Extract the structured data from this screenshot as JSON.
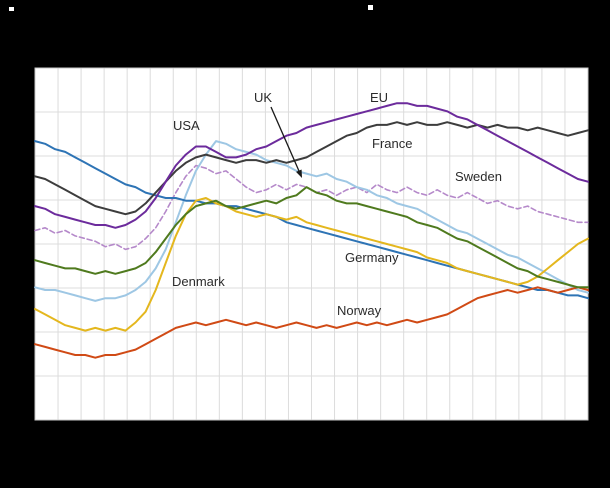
{
  "chart_data": {
    "type": "line",
    "title": "",
    "xlabel": "",
    "ylabel": "",
    "ylim": [
      0,
      13
    ],
    "x_points": 56,
    "grid": {
      "vertical_divisions": 24,
      "horizontal_divisions": 8,
      "grid_color": "#dcdcdc",
      "border_color": "#c9c9c9",
      "grid_on": true
    },
    "background": {
      "page": "#000000",
      "plot": "#ffffff"
    },
    "legend_position": "inline-labels",
    "annotation_arrow_color": "#1a1a1a",
    "series": [
      {
        "name": "USA",
        "color": "#9ec7e4",
        "style": "solid",
        "values": [
          4.9,
          4.8,
          4.8,
          4.7,
          4.6,
          4.5,
          4.4,
          4.5,
          4.5,
          4.6,
          4.8,
          5.1,
          5.6,
          6.3,
          7.3,
          8.3,
          9.2,
          9.8,
          10.3,
          10.2,
          10.0,
          9.9,
          9.8,
          9.6,
          9.5,
          9.4,
          9.2,
          9.1,
          9.0,
          9.1,
          8.9,
          8.8,
          8.6,
          8.5,
          8.3,
          8.2,
          8.0,
          7.9,
          7.8,
          7.6,
          7.4,
          7.2,
          7.0,
          6.9,
          6.7,
          6.5,
          6.3,
          6.1,
          6.0,
          5.8,
          5.6,
          5.4,
          5.2,
          5.0,
          4.8,
          4.7
        ]
      },
      {
        "name": "UK",
        "color": "#4f7a1e",
        "style": "solid",
        "values": [
          5.9,
          5.8,
          5.7,
          5.6,
          5.6,
          5.5,
          5.4,
          5.5,
          5.4,
          5.5,
          5.6,
          5.8,
          6.2,
          6.7,
          7.2,
          7.6,
          7.9,
          8.0,
          8.1,
          7.9,
          7.8,
          7.9,
          8.0,
          8.1,
          8.0,
          8.2,
          8.3,
          8.6,
          8.4,
          8.3,
          8.1,
          8.0,
          8.0,
          7.9,
          7.8,
          7.7,
          7.6,
          7.5,
          7.3,
          7.2,
          7.1,
          6.9,
          6.7,
          6.6,
          6.4,
          6.2,
          6.0,
          5.8,
          5.6,
          5.5,
          5.3,
          5.2,
          5.1,
          5.0,
          4.9,
          4.9
        ]
      },
      {
        "name": "EU",
        "color": "#6c2b9c",
        "style": "solid",
        "values": [
          7.9,
          7.8,
          7.6,
          7.5,
          7.4,
          7.3,
          7.2,
          7.2,
          7.1,
          7.2,
          7.4,
          7.7,
          8.2,
          8.8,
          9.4,
          9.8,
          10.1,
          10.1,
          9.9,
          9.7,
          9.7,
          9.8,
          10.0,
          10.1,
          10.3,
          10.5,
          10.6,
          10.8,
          10.9,
          11.0,
          11.1,
          11.2,
          11.3,
          11.4,
          11.5,
          11.6,
          11.7,
          11.7,
          11.6,
          11.6,
          11.5,
          11.4,
          11.2,
          11.1,
          10.9,
          10.7,
          10.5,
          10.3,
          10.1,
          9.9,
          9.7,
          9.5,
          9.3,
          9.1,
          8.9,
          8.8
        ]
      },
      {
        "name": "France",
        "color": "#3d3d3d",
        "style": "solid",
        "values": [
          9.0,
          8.9,
          8.7,
          8.5,
          8.3,
          8.1,
          7.9,
          7.8,
          7.7,
          7.6,
          7.7,
          8.0,
          8.4,
          8.8,
          9.2,
          9.5,
          9.7,
          9.8,
          9.7,
          9.6,
          9.5,
          9.6,
          9.6,
          9.5,
          9.6,
          9.5,
          9.6,
          9.7,
          9.9,
          10.1,
          10.3,
          10.5,
          10.6,
          10.8,
          10.9,
          10.9,
          11.0,
          10.9,
          11.0,
          10.9,
          10.9,
          11.0,
          10.9,
          10.8,
          10.9,
          10.8,
          10.9,
          10.8,
          10.8,
          10.7,
          10.8,
          10.7,
          10.6,
          10.5,
          10.6,
          10.7
        ]
      },
      {
        "name": "Sweden",
        "color": "#b589ca",
        "style": "dashed",
        "values": [
          7.0,
          7.1,
          6.9,
          7.0,
          6.8,
          6.7,
          6.6,
          6.4,
          6.5,
          6.3,
          6.4,
          6.7,
          7.1,
          7.7,
          8.4,
          9.0,
          9.4,
          9.3,
          9.1,
          9.2,
          8.9,
          8.6,
          8.4,
          8.5,
          8.7,
          8.5,
          8.7,
          8.6,
          8.4,
          8.5,
          8.3,
          8.5,
          8.6,
          8.4,
          8.7,
          8.5,
          8.4,
          8.6,
          8.4,
          8.3,
          8.5,
          8.3,
          8.2,
          8.4,
          8.2,
          8.0,
          8.1,
          7.9,
          7.8,
          7.9,
          7.7,
          7.6,
          7.5,
          7.4,
          7.3,
          7.3
        ]
      },
      {
        "name": "Germany",
        "color": "#2e74b5",
        "style": "solid",
        "values": [
          10.3,
          10.2,
          10.0,
          9.9,
          9.7,
          9.5,
          9.3,
          9.1,
          8.9,
          8.7,
          8.6,
          8.4,
          8.3,
          8.2,
          8.2,
          8.1,
          8.1,
          8.0,
          8.0,
          7.9,
          7.9,
          7.8,
          7.7,
          7.6,
          7.5,
          7.3,
          7.2,
          7.1,
          7.0,
          6.9,
          6.8,
          6.7,
          6.6,
          6.5,
          6.4,
          6.3,
          6.2,
          6.1,
          6.0,
          5.9,
          5.8,
          5.7,
          5.6,
          5.5,
          5.4,
          5.3,
          5.2,
          5.1,
          5.0,
          4.9,
          4.8,
          4.8,
          4.7,
          4.6,
          4.6,
          4.5
        ]
      },
      {
        "name": "Denmark",
        "color": "#e4b71e",
        "style": "solid",
        "values": [
          4.1,
          3.9,
          3.7,
          3.5,
          3.4,
          3.3,
          3.4,
          3.3,
          3.4,
          3.3,
          3.6,
          4.0,
          4.8,
          5.8,
          6.8,
          7.6,
          8.1,
          8.2,
          8.0,
          7.9,
          7.7,
          7.6,
          7.5,
          7.6,
          7.5,
          7.4,
          7.5,
          7.3,
          7.2,
          7.1,
          7.0,
          6.9,
          6.8,
          6.7,
          6.6,
          6.5,
          6.4,
          6.3,
          6.2,
          6.0,
          5.9,
          5.8,
          5.6,
          5.5,
          5.4,
          5.3,
          5.2,
          5.1,
          5.0,
          5.1,
          5.3,
          5.6,
          5.9,
          6.2,
          6.5,
          6.7
        ]
      },
      {
        "name": "Norway",
        "color": "#d04a15",
        "style": "solid",
        "values": [
          2.8,
          2.7,
          2.6,
          2.5,
          2.4,
          2.4,
          2.3,
          2.4,
          2.4,
          2.5,
          2.6,
          2.8,
          3.0,
          3.2,
          3.4,
          3.5,
          3.6,
          3.5,
          3.6,
          3.7,
          3.6,
          3.5,
          3.6,
          3.5,
          3.4,
          3.5,
          3.6,
          3.5,
          3.4,
          3.5,
          3.4,
          3.5,
          3.6,
          3.5,
          3.6,
          3.5,
          3.6,
          3.7,
          3.6,
          3.7,
          3.8,
          3.9,
          4.1,
          4.3,
          4.5,
          4.6,
          4.7,
          4.8,
          4.7,
          4.8,
          4.9,
          4.8,
          4.7,
          4.8,
          4.9,
          4.8
        ]
      }
    ]
  }
}
